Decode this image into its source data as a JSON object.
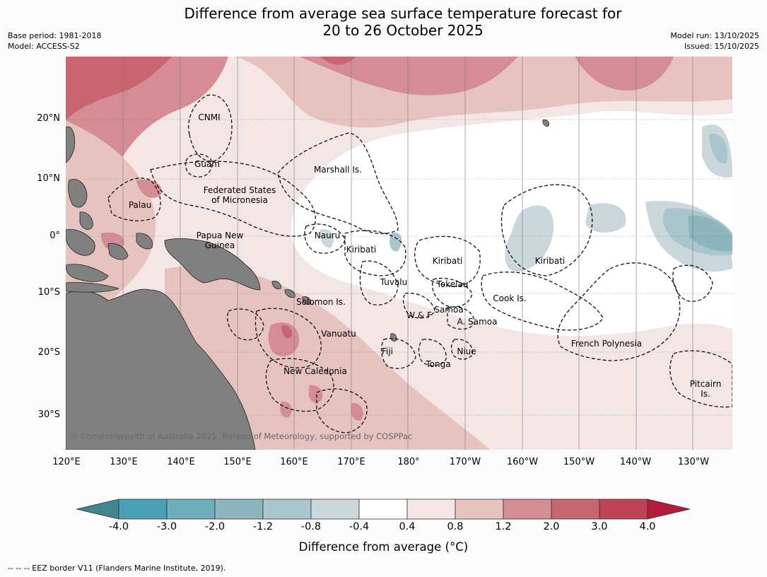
{
  "header": {
    "title_line1": "Difference from average sea surface temperature forecast for",
    "title_line2": "20 to 26 October 2025",
    "base_period": "Base period: 1981-2018",
    "model": "Model: ACCESS-S2",
    "model_run": "Model run: 13/10/2025",
    "issued": "Issued: 15/10/2025"
  },
  "map": {
    "lat_labels": [
      "20°N",
      "10°N",
      "0°",
      "10°S",
      "20°S",
      "30°S"
    ],
    "lon_labels": [
      "120°E",
      "130°E",
      "140°E",
      "150°E",
      "160°E",
      "170°E",
      "180°",
      "170°W",
      "160°W",
      "150°W",
      "140°W",
      "130°W"
    ],
    "regions": {
      "cnmi": "CNMI",
      "guam": "Guam",
      "marshall": "Marshall Is.",
      "fsm_line1": "Federated States",
      "fsm_line2": "of Micronesia",
      "palau": "Palau",
      "png_line1": "Papua New",
      "png_line2": "Guinea",
      "nauru": "Nauru",
      "kiribati_w": "Kiribati",
      "kiribati_c": "Kiribati",
      "kiribati_e": "Kiribati",
      "tuvalu": "Tuvalu",
      "tokelau": "Tokelau",
      "cook": "Cook Is.",
      "solomon": "Solomon Is.",
      "samoa": "Samoa",
      "wf": "W & F",
      "asamoa": "A. Samoa",
      "vanuatu": "Vanuatu",
      "fiji": "Fiji",
      "niue": "Niue",
      "tonga": "Tonga",
      "new_caledonia": "New Caledonia",
      "french_polynesia": "French Polynesia",
      "pitcairn_line1": "Pitcairn",
      "pitcairn_line2": "Is."
    },
    "copyright": "© Commonwealth of Australia 2025, Bureau of Meteorology, supported by COSPPac",
    "colors": {
      "land": "#808080",
      "ocean_neutral": "#ffffff"
    }
  },
  "colorbar": {
    "ticks": [
      "-4.0",
      "-3.0",
      "-2.0",
      "-1.2",
      "-0.8",
      "-0.4",
      "0.4",
      "0.8",
      "1.2",
      "2.0",
      "3.0",
      "4.0"
    ],
    "colors": [
      "#408590",
      "#4aa0b4",
      "#6eaebd",
      "#8cb5c0",
      "#a9c6cc",
      "#cbd8db",
      "#ffffff",
      "#f3e6e4",
      "#e6c3bf",
      "#d58c94",
      "#c8656e",
      "#bd4355",
      "#b31c3b"
    ],
    "label": "Difference from average (°C)"
  },
  "footnote": "--  --  -- EEZ border V11 (Flanders Marine Institute, 2019)."
}
